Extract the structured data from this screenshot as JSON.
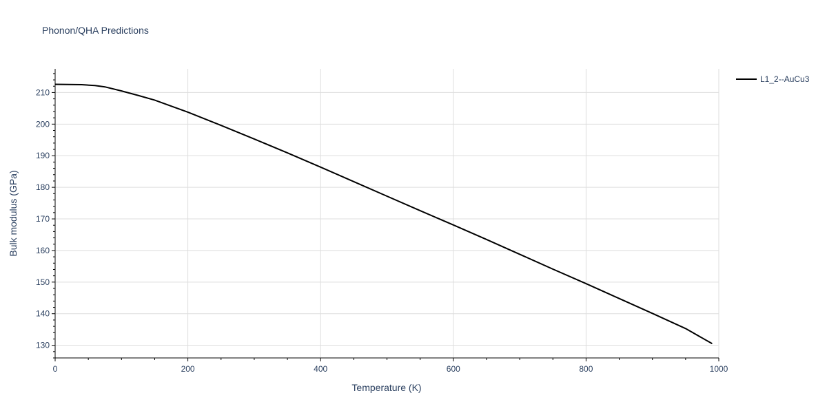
{
  "title": "Phonon/QHA Predictions",
  "colors": {
    "line": "#000000",
    "grid": "#dddddd",
    "text": "#2a3f5f",
    "axis": "#000000"
  },
  "chart_data": {
    "type": "line",
    "title": "Phonon/QHA Predictions",
    "xlabel": "Temperature (K)",
    "ylabel": "Bulk modulus (GPa)",
    "xlim": [
      0,
      1000
    ],
    "ylim": [
      126,
      217.5
    ],
    "x_ticks": [
      0,
      200,
      400,
      600,
      800,
      1000
    ],
    "y_ticks": [
      130,
      140,
      150,
      160,
      170,
      180,
      190,
      200,
      210
    ],
    "grid": true,
    "legend_position": "top-right",
    "series": [
      {
        "name": "L1_2--AuCu3",
        "x": [
          0,
          20,
          40,
          60,
          75,
          100,
          125,
          150,
          200,
          250,
          300,
          350,
          400,
          450,
          500,
          550,
          600,
          650,
          700,
          750,
          800,
          850,
          900,
          950,
          990
        ],
        "y": [
          212.6,
          212.55,
          212.5,
          212.2,
          211.8,
          210.5,
          209.1,
          207.6,
          203.8,
          199.6,
          195.3,
          190.9,
          186.4,
          181.8,
          177.2,
          172.6,
          168.1,
          163.5,
          158.8,
          154.1,
          149.5,
          144.8,
          140.1,
          135.3,
          130.5
        ]
      }
    ]
  }
}
